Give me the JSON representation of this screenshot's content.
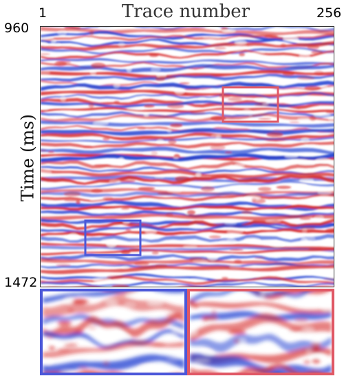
{
  "figure": {
    "x_axis_title": "Trace number",
    "x_tick_min": "1",
    "x_tick_max": "256",
    "y_axis_title": "Time (ms)",
    "y_tick_min": "960",
    "y_tick_max": "1472"
  },
  "colors": {
    "positive": "#d62828",
    "negative": "#1f3fd1",
    "neutral": "#ffffff",
    "box_red": "#e05865",
    "box_blue": "#4b57d9"
  },
  "insets": [
    {
      "name": "blue-region",
      "color": "box_blue"
    },
    {
      "name": "red-region",
      "color": "box_red"
    }
  ]
}
